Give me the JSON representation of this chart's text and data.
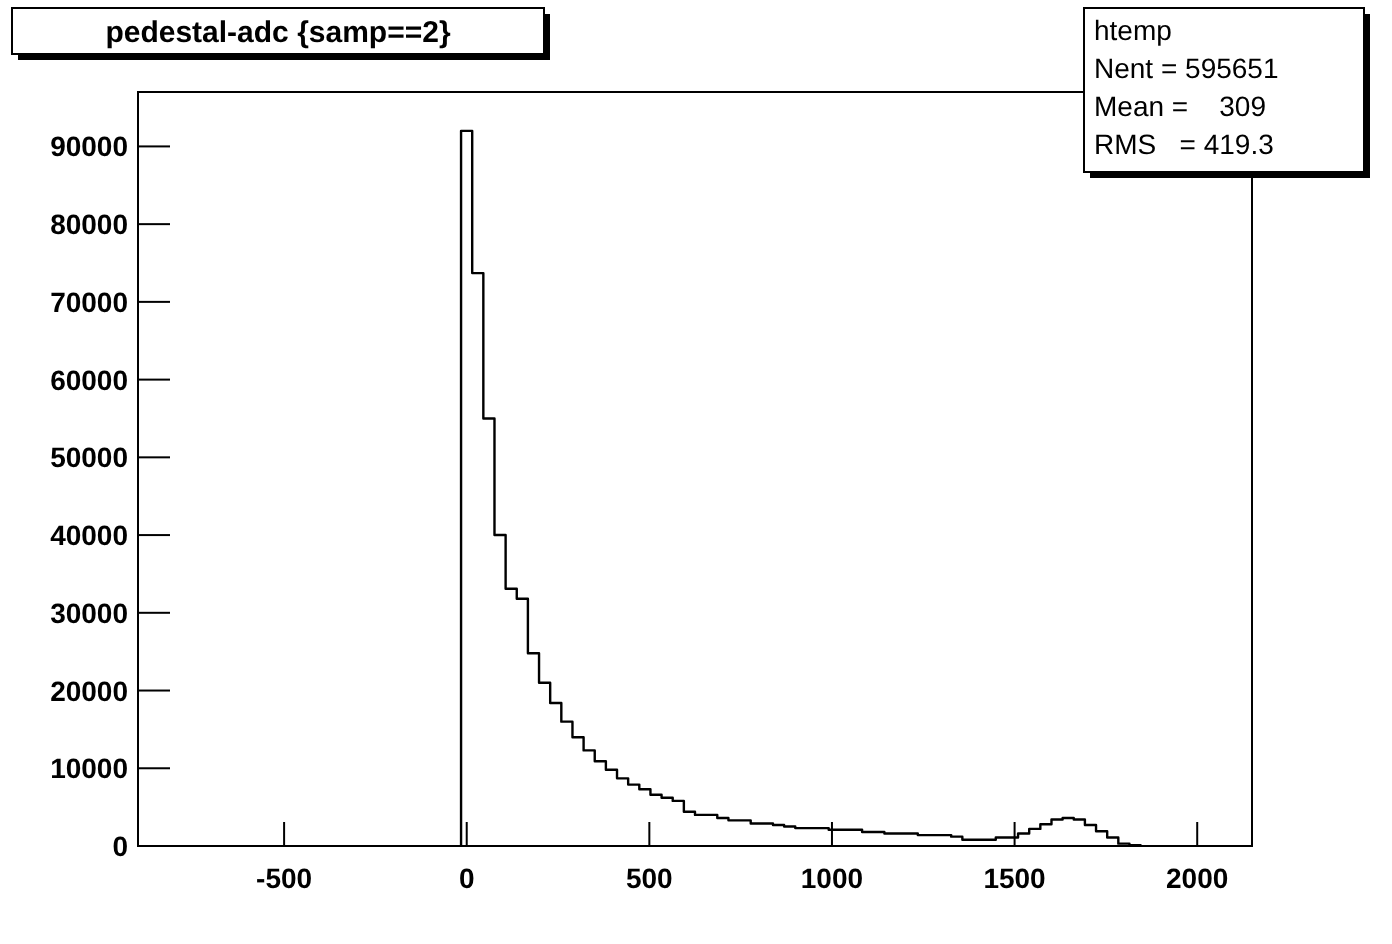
{
  "chart_data": {
    "type": "histogram",
    "title": "pedestal-adc {samp==2}",
    "bins": [
      -15.5,
      15,
      45.5,
      76,
      106.5,
      137,
      167.5,
      198,
      228.5,
      259,
      289.5,
      320,
      350.5,
      381,
      411.5,
      442,
      472.5,
      503,
      533.5,
      564,
      594.5,
      625,
      655.5,
      686,
      716.5,
      747,
      777.5,
      808,
      838.5,
      869,
      899.5,
      930,
      960.5,
      991,
      1021.5,
      1052,
      1082.5,
      1113,
      1143.5,
      1174,
      1204.5,
      1235,
      1265.5,
      1296,
      1326.5,
      1357,
      1387.5,
      1418,
      1448.5,
      1479,
      1509.5,
      1540,
      1570.5,
      1601,
      1631.5,
      1662,
      1692.5,
      1723,
      1753.5,
      1784,
      1814.5,
      1845
    ],
    "values": [
      92000,
      73700,
      55000,
      40000,
      33100,
      31800,
      24800,
      21000,
      18400,
      16000,
      14000,
      12300,
      10900,
      9800,
      8700,
      7900,
      7300,
      6600,
      6200,
      5800,
      4400,
      4000,
      4000,
      3600,
      3300,
      3300,
      2900,
      2900,
      2700,
      2500,
      2300,
      2300,
      2300,
      2100,
      2100,
      2100,
      1800,
      1800,
      1600,
      1600,
      1600,
      1400,
      1400,
      1400,
      1200,
      800,
      800,
      800,
      1100,
      1100,
      1600,
      2200,
      2800,
      3400,
      3600,
      3400,
      2700,
      1900,
      1100,
      300,
      100
    ],
    "color": "#000000",
    "xlim": [
      -900,
      2150
    ],
    "xticks": [
      -500,
      0,
      500,
      1000,
      1500,
      2000
    ],
    "ylim": [
      0,
      97000
    ],
    "yticks": [
      0,
      10000,
      20000,
      30000,
      40000,
      50000,
      60000,
      70000,
      80000,
      90000
    ],
    "grid": false,
    "annotations": [
      "htemp",
      "Nent = 595651",
      "Mean =    309",
      "RMS   = 419.3"
    ]
  }
}
